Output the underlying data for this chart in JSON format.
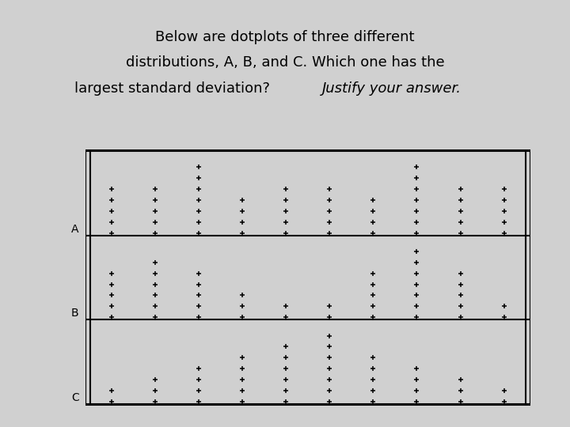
{
  "title_line1": "Below are dotplots of three different",
  "title_line2": "distributions, A, B, and C. Which one has the",
  "title_line3": "largest standard deviation? ",
  "title_italic": "Justify your answer.",
  "background_color": "#d0d0d0",
  "box_facecolor": "#f0f0f0",
  "dot_color": "#000000",
  "label_color": "#000000",
  "distributions": {
    "A": {
      "data": {
        "1": 5,
        "2": 5,
        "3": 7,
        "4": 4,
        "5": 5,
        "6": 5,
        "7": 4,
        "8": 7,
        "9": 5,
        "10": 5
      }
    },
    "B": {
      "data": {
        "1": 5,
        "2": 6,
        "3": 5,
        "4": 3,
        "5": 2,
        "6": 2,
        "7": 5,
        "8": 7,
        "9": 5,
        "10": 2
      }
    },
    "C": {
      "data": {
        "1": 2,
        "2": 3,
        "3": 4,
        "4": 5,
        "5": 6,
        "6": 7,
        "7": 5,
        "8": 4,
        "9": 3,
        "10": 2
      }
    }
  }
}
